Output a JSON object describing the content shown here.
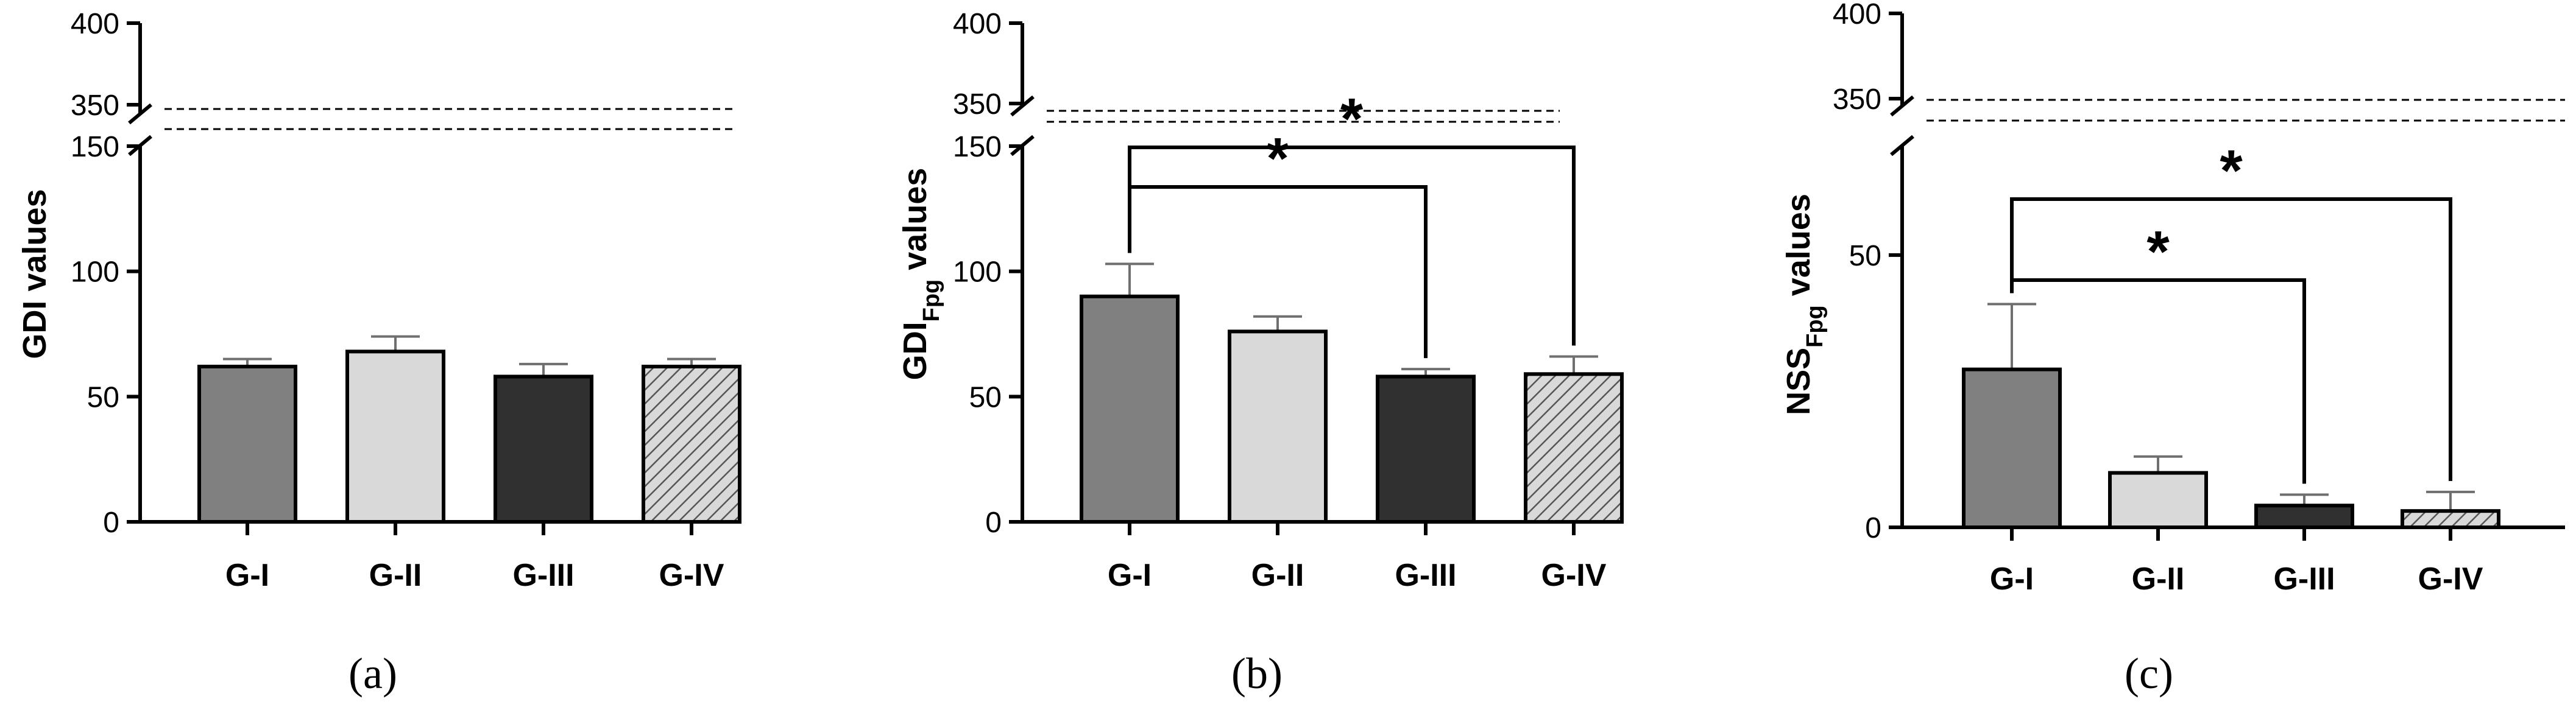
{
  "chart_data": [
    {
      "type": "bar",
      "panel_label": "(a)",
      "ylabel": {
        "main": "GDI",
        "sub": "",
        "rest": " values"
      },
      "categories": [
        "G-I",
        "G-II",
        "G-III",
        "G-IV"
      ],
      "values": [
        62,
        68,
        58,
        62
      ],
      "errors": [
        3,
        6,
        5,
        3
      ],
      "ylim": [
        0,
        150
      ],
      "yticks": [
        0,
        50,
        100,
        150
      ],
      "broken_axis_upper_ticks": [
        350,
        400
      ],
      "significance": []
    },
    {
      "type": "bar",
      "panel_label": "(b)",
      "ylabel": {
        "main": "GDI",
        "sub": "Fpg",
        "rest": " values"
      },
      "categories": [
        "G-I",
        "G-II",
        "G-III",
        "G-IV"
      ],
      "values": [
        90,
        76,
        58,
        59
      ],
      "errors": [
        13,
        6,
        3,
        7
      ],
      "ylim": [
        0,
        150
      ],
      "yticks": [
        0,
        50,
        100,
        150
      ],
      "broken_axis_upper_ticks": [
        350,
        400
      ],
      "significance": [
        {
          "from": 0,
          "to": 2,
          "label": "*"
        },
        {
          "from": 0,
          "to": 3,
          "label": "*"
        }
      ]
    },
    {
      "type": "bar",
      "panel_label": "(c)",
      "ylabel": {
        "main": "NSS",
        "sub": "Fpg",
        "rest": " values"
      },
      "categories": [
        "G-I",
        "G-II",
        "G-III",
        "G-IV"
      ],
      "values": [
        29,
        10,
        4,
        3
      ],
      "errors": [
        12,
        3,
        2,
        3.5
      ],
      "ylim": [
        0,
        70
      ],
      "yticks": [
        0,
        50
      ],
      "broken_axis_upper_ticks": [
        350,
        400
      ],
      "significance": [
        {
          "from": 0,
          "to": 2,
          "label": "*"
        },
        {
          "from": 0,
          "to": 3,
          "label": "*"
        }
      ]
    }
  ],
  "colors": {
    "bar_fills": [
      "#808080",
      "#d9d9d9",
      "#303030",
      "hatch"
    ],
    "error_bar": "#6f6f6f",
    "axis": "#000000"
  }
}
